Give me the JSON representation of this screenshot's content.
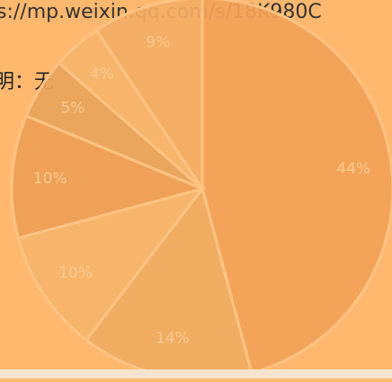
{
  "background_text": [
    "s://mp.weixin.qq.com/s/18K980C",
    "明：无"
  ],
  "chart_data": {
    "type": "pie",
    "values": [
      44,
      14,
      10,
      10,
      5,
      4,
      9
    ],
    "value_labels": [
      "44%",
      "14%",
      "10%",
      "10%",
      "5%",
      "4%",
      "9%"
    ],
    "colors": [
      "#f3a258",
      "#f0ab62",
      "#f6b46b",
      "#ee9e56",
      "#e9a45c",
      "#f6b36b",
      "#f4ac65"
    ]
  }
}
